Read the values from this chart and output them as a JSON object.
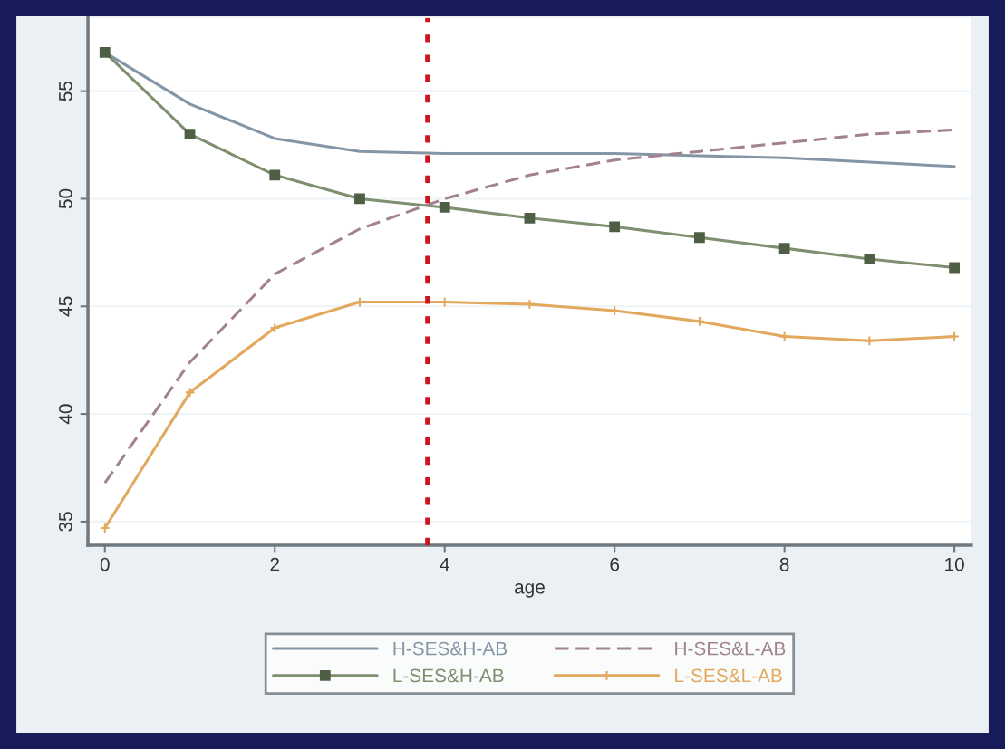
{
  "chart_data": {
    "type": "line",
    "xlabel": "age",
    "x": [
      0,
      1,
      2,
      3,
      4,
      5,
      6,
      7,
      8,
      9,
      10
    ],
    "series": [
      {
        "name": "H-SES&H-AB",
        "color": "#8496a6",
        "line_style": "solid",
        "marker": "none",
        "values": [
          56.8,
          54.4,
          52.8,
          52.2,
          52.1,
          52.1,
          52.1,
          52.0,
          51.9,
          51.7,
          51.5
        ]
      },
      {
        "name": "H-SES&L-AB",
        "color": "#a3828f",
        "line_style": "dashed",
        "marker": "none",
        "values": [
          36.8,
          42.4,
          46.5,
          48.6,
          50.0,
          51.1,
          51.8,
          52.2,
          52.6,
          53.0,
          53.2
        ]
      },
      {
        "name": "L-SES&H-AB",
        "color": "#7f8f70",
        "line_style": "solid",
        "marker": "square",
        "values": [
          56.8,
          53.0,
          51.1,
          50.0,
          49.6,
          49.1,
          48.7,
          48.2,
          47.7,
          47.2,
          46.8
        ]
      },
      {
        "name": "L-SES&L-AB",
        "color": "#e2a85e",
        "line_style": "solid",
        "marker": "cross",
        "values": [
          34.7,
          41.0,
          44.0,
          45.2,
          45.2,
          45.1,
          44.8,
          44.3,
          43.6,
          43.4,
          43.6
        ]
      }
    ],
    "xlim": [
      -0.2,
      10.2
    ],
    "ylim": [
      33.9,
      58.4
    ],
    "xticks": [
      0,
      2,
      4,
      6,
      8,
      10
    ],
    "yticks": [
      35,
      40,
      45,
      50,
      55
    ],
    "ref_lines": [
      {
        "axis": "x",
        "value": 3.8,
        "color": "#d0141e",
        "line_style": "dotted"
      }
    ],
    "grid": "y",
    "legend": "bottom"
  }
}
